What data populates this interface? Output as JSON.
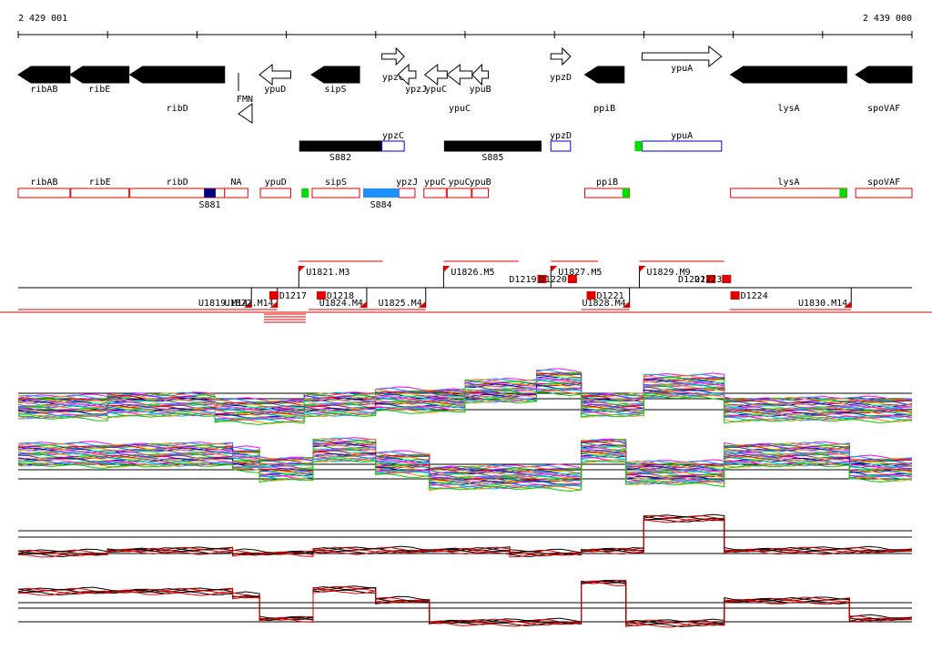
{
  "ruler": {
    "start_label": "2 429 001",
    "end_label": "2 439 000",
    "start": 2429001,
    "end": 2439000
  },
  "genes": [
    {
      "name": "ribAB",
      "start": 2429001,
      "end": 2429580,
      "strand": "-",
      "fill": "black",
      "label_row": 0
    },
    {
      "name": "ribE",
      "start": 2429580,
      "end": 2430240,
      "strand": "-",
      "fill": "black",
      "label_row": 0
    },
    {
      "name": "ribD",
      "start": 2430250,
      "end": 2431310,
      "strand": "-",
      "fill": "black",
      "label_row": 1
    },
    {
      "name": "ypuD",
      "start": 2431700,
      "end": 2432050,
      "strand": "-",
      "fill": "white",
      "label_row": 0
    },
    {
      "name": "sipS",
      "start": 2432280,
      "end": 2432820,
      "strand": "-",
      "fill": "black",
      "label_row": 0
    },
    {
      "name": "ypzC",
      "start": 2433070,
      "end": 2433320,
      "strand": "+",
      "fill": "white",
      "label_row": 0
    },
    {
      "name": "ypzJ",
      "start": 2433250,
      "end": 2433450,
      "strand": "-",
      "fill": "white",
      "label_row": 0
    },
    {
      "name": "ypuC",
      "start": 2433550,
      "end": 2433800,
      "strand": "-",
      "fill": "white",
      "label_row": 0
    },
    {
      "name": "ypuC",
      "start": 2433800,
      "end": 2434080,
      "strand": "-",
      "fill": "white",
      "label_row": 1
    },
    {
      "name": "ypuB",
      "start": 2434080,
      "end": 2434260,
      "strand": "-",
      "fill": "white",
      "label_row": 0
    },
    {
      "name": "ypzD",
      "start": 2434960,
      "end": 2435180,
      "strand": "+",
      "fill": "white",
      "label_row": 0
    },
    {
      "name": "ppiB",
      "start": 2435340,
      "end": 2435780,
      "strand": "-",
      "fill": "black",
      "label_row": 1
    },
    {
      "name": "ypuA",
      "start": 2435980,
      "end": 2436870,
      "strand": "+",
      "fill": "white",
      "label_row": -1
    },
    {
      "name": "lysA",
      "start": 2436970,
      "end": 2438270,
      "strand": "-",
      "fill": "black",
      "label_row": 1
    },
    {
      "name": "spoVAF",
      "start": 2438370,
      "end": 2439000,
      "strand": "-",
      "fill": "black",
      "label_row": 1
    }
  ],
  "riboswitch": {
    "label": "FMN"
  },
  "annotations": [
    {
      "name": "S882",
      "start": 2432150,
      "end": 2433060,
      "fill": "black",
      "label_pos": "below"
    },
    {
      "name": "ypzC",
      "start": 2433070,
      "end": 2433320,
      "fill": "white",
      "label_pos": "above"
    },
    {
      "name": "S885",
      "start": 2433770,
      "end": 2434850,
      "fill": "black",
      "label_pos": "below"
    },
    {
      "name": "ypzD",
      "start": 2434960,
      "end": 2435180,
      "fill": "white",
      "label_pos": "above"
    },
    {
      "name": "ypuA",
      "start": 2435980,
      "end": 2436870,
      "fill": "white",
      "label_pos": "above"
    }
  ],
  "transcripts_labels": [
    "ribAB",
    "ribE",
    "ribD",
    "NA",
    "ypuD",
    "sipS",
    "ypzJ",
    "ypuC",
    "ypuC",
    "ypuB",
    "ppiB",
    "lysA",
    "spoVAF",
    "S881",
    "S884"
  ],
  "transcripts": [
    {
      "name": "ribAB",
      "start": 2429001,
      "end": 2429580,
      "mark": null
    },
    {
      "name": "ribE",
      "start": 2429590,
      "end": 2430240,
      "mark": null
    },
    {
      "name": "ribD",
      "start": 2430250,
      "end": 2431310,
      "mark": {
        "name": "S881",
        "color": "navy",
        "start": 2431080,
        "end": 2431210
      }
    },
    {
      "name": "NA",
      "start": 2431310,
      "end": 2431570,
      "mark": null
    },
    {
      "name": "ypuD",
      "start": 2431710,
      "end": 2432050,
      "mark": null
    },
    {
      "name": "",
      "start": 2432170,
      "end": 2432250,
      "mark": "green-only"
    },
    {
      "name": "sipS",
      "start": 2432290,
      "end": 2432820,
      "mark": null
    },
    {
      "name": "ypzJ",
      "start": 2433260,
      "end": 2433440,
      "mark": {
        "name": "S884",
        "color": "#1e90ff",
        "start": 2432860,
        "end": 2433260
      }
    },
    {
      "name": "ypuC",
      "start": 2433540,
      "end": 2433790,
      "mark": null
    },
    {
      "name": "ypuC",
      "start": 2433800,
      "end": 2434070,
      "mark": null
    },
    {
      "name": "ypuB",
      "start": 2434080,
      "end": 2434260,
      "mark": null
    },
    {
      "name": "ppiB",
      "start": 2435340,
      "end": 2435840,
      "mark": "green-end"
    },
    {
      "name": "lysA",
      "start": 2436970,
      "end": 2438270,
      "mark": "green-end"
    },
    {
      "name": "spoVAF",
      "start": 2438370,
      "end": 2439000,
      "mark": null
    }
  ],
  "segments_upper": [
    {
      "name": "U1821.M3",
      "start": 2432140,
      "end": 2433080
    },
    {
      "name": "U1826.M5",
      "start": 2433760,
      "end": 2434600
    },
    {
      "name": "U1827.M5",
      "start": 2434960,
      "end": 2435490
    },
    {
      "name": "U1829.M9",
      "start": 2435950,
      "end": 2436900
    }
  ],
  "segments_lower": [
    {
      "name": "U1819.M14",
      "start": 2429001,
      "end": 2431610
    },
    {
      "name": "U1822.M14",
      "start": 2431610,
      "end": 2431900
    },
    {
      "name": "U1824.M4",
      "start": 2432250,
      "end": 2432900
    },
    {
      "name": "U1825.M4",
      "start": 2432900,
      "end": 2433560
    },
    {
      "name": "U1828.M4",
      "start": 2435300,
      "end": 2435840
    },
    {
      "name": "U1830.M14",
      "start": 2436960,
      "end": 2438320
    }
  ],
  "breakpoints_upper": [
    {
      "name": "D1219",
      "pos": 2434810
    },
    {
      "name": "D1220",
      "pos": 2435150
    },
    {
      "name": "D1222",
      "pos": 2436700
    }
  ],
  "breakpoints_lower": [
    {
      "name": "D1217",
      "pos": 2431810
    },
    {
      "name": "D1218",
      "pos": 2432340
    },
    {
      "name": "D1221",
      "pos": 2435360
    },
    {
      "name": "D1224",
      "pos": 2436970
    }
  ],
  "extra_breakpoint_labels": [
    "D1223"
  ],
  "panels": [
    {
      "id": "expression-panel-1",
      "lines": 28,
      "colored": true
    },
    {
      "id": "expression-panel-2",
      "lines": 28,
      "colored": true
    },
    {
      "id": "expression-panel-3",
      "lines": 6,
      "colored": false
    },
    {
      "id": "expression-panel-4",
      "lines": 6,
      "colored": false
    }
  ],
  "colors": {
    "accent_red": "#e00000",
    "green": "#00dd00",
    "navy": "#000080",
    "blue": "#1e90ff",
    "outline_blue": "#0000cc"
  }
}
